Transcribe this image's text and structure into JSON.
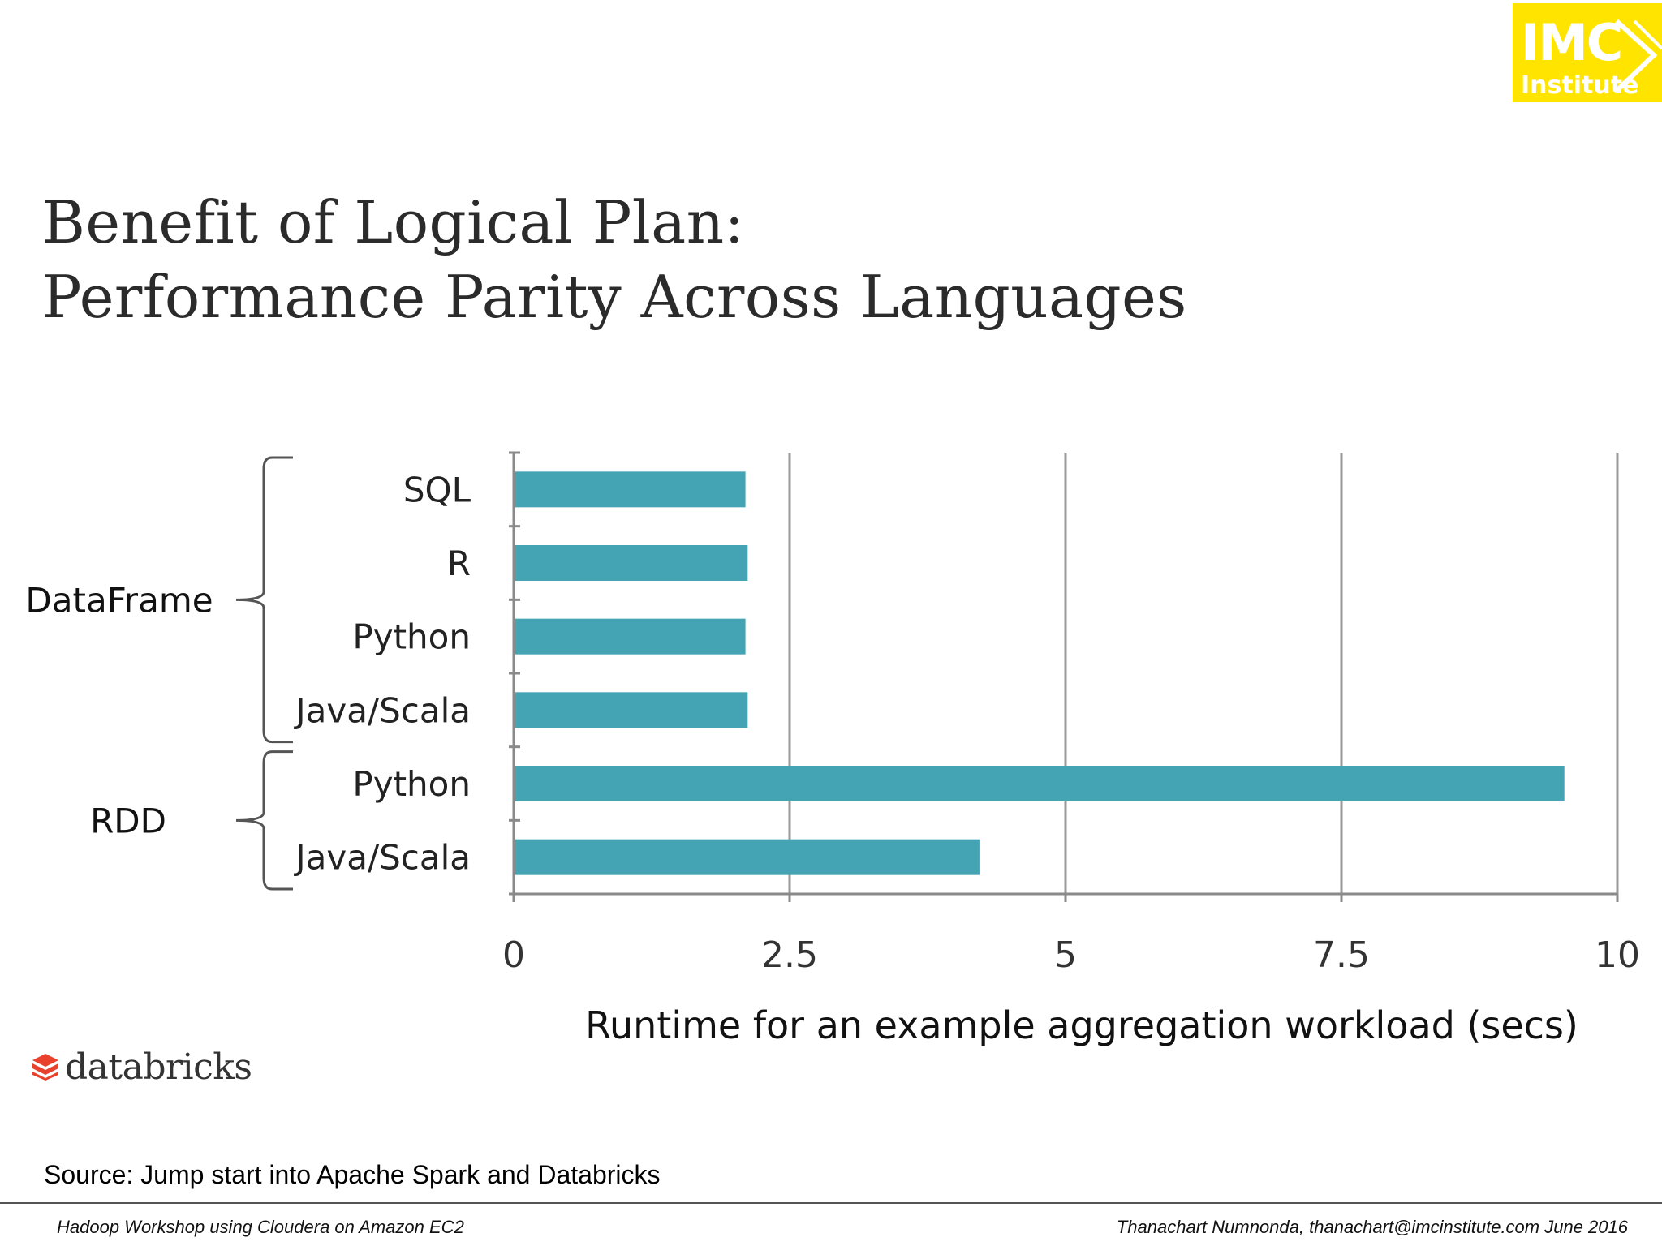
{
  "slide": {
    "title_line1": "Benefit of Logical Plan:",
    "title_line2": "Performance Parity Across Languages",
    "source": "Source: Jump start into Apache Spark and Databricks",
    "footer_left": "Hadoop Workshop using Cloudera on Amazon EC2",
    "footer_right": "Thanachart Numnonda,  thanachart@imcinstitute.com  June 2016"
  },
  "logos": {
    "imc_text": "IMC",
    "imc_sub": "Institute",
    "imc_color": "#ffe400",
    "databricks_text": "databricks",
    "databricks_color": "#e8412c"
  },
  "chart_data": {
    "type": "bar",
    "orientation": "horizontal",
    "categories": [
      "SQL",
      "R",
      "Python",
      "Java/Scala",
      "Python",
      "Java/Scala"
    ],
    "groups": [
      {
        "name": "DataFrame",
        "categories": [
          "SQL",
          "R",
          "Python",
          "Java/Scala"
        ]
      },
      {
        "name": "RDD",
        "categories": [
          "Python",
          "Java/Scala"
        ]
      }
    ],
    "values": [
      2.1,
      2.12,
      2.1,
      2.12,
      9.52,
      4.22
    ],
    "xlabel": "Runtime for an example aggregation workload (secs)",
    "ylabel": "",
    "xlim": [
      0,
      10
    ],
    "xticks": [
      "0",
      "2.5",
      "5",
      "7.5",
      "10"
    ],
    "tick_values": [
      0,
      2.5,
      5,
      7.5,
      10
    ],
    "grid": true,
    "bar_color": "#44a4b4"
  }
}
